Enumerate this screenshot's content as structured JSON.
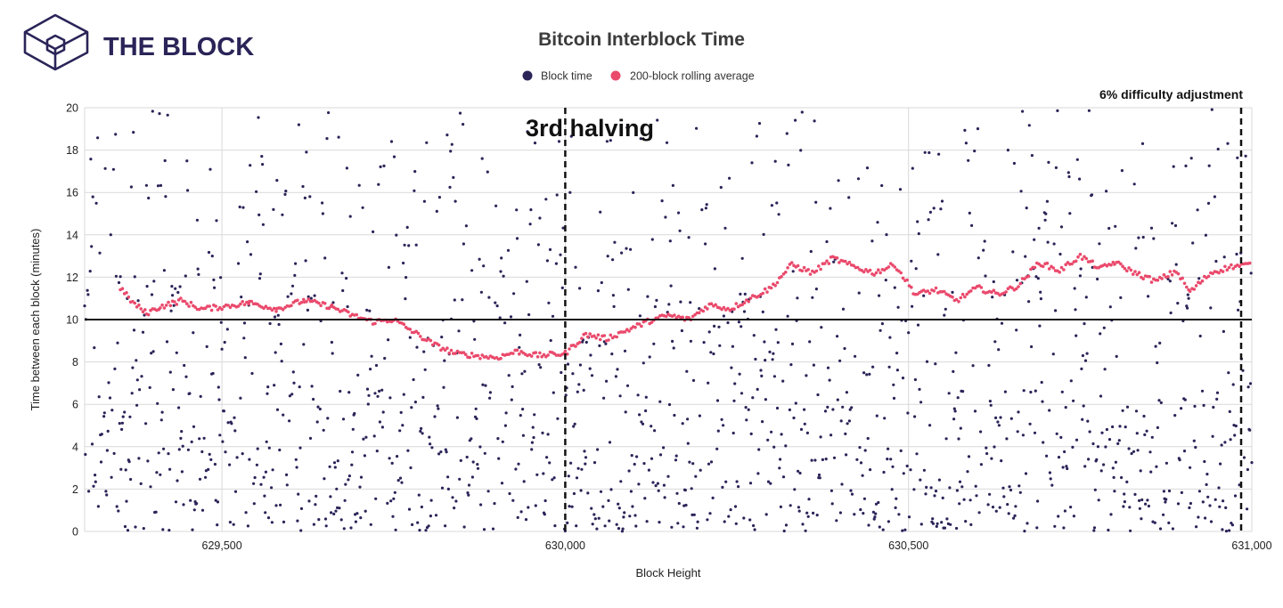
{
  "brand": {
    "name": "THE BLOCK",
    "color": "#2a2458"
  },
  "colors": {
    "block_time": "#2a2458",
    "rolling_avg": "#ea4a6c",
    "reference_line": "#111111"
  },
  "chart_data": {
    "type": "scatter",
    "title": "Bitcoin Interblock Time",
    "xlabel": "Block Height",
    "ylabel": "Time between each block (minutes)",
    "xlim": [
      629300,
      631000
    ],
    "ylim": [
      0,
      20
    ],
    "x_ticks": [
      629500,
      630000,
      630500,
      631000
    ],
    "x_tick_labels": [
      "629,500",
      "630,000",
      "630,500",
      "631,000"
    ],
    "y_ticks": [
      0,
      2,
      4,
      6,
      8,
      10,
      12,
      14,
      16,
      18,
      20
    ],
    "grid": true,
    "legend_position": "top-center",
    "series": [
      {
        "name": "Block time",
        "kind": "points",
        "note_count_estimate": 1700
      },
      {
        "name": "200-block rolling average",
        "kind": "smoothed",
        "x": [
          629352,
          629370,
          629390,
          629410,
          629440,
          629470,
          629500,
          629540,
          629580,
          629620,
          629660,
          629690,
          629720,
          629750,
          629780,
          629810,
          629840,
          629870,
          629900,
          629930,
          629960,
          630000,
          630030,
          630060,
          630090,
          630120,
          630150,
          630180,
          630210,
          630240,
          630270,
          630300,
          630330,
          630360,
          630390,
          630420,
          630450,
          630480,
          630510,
          630540,
          630570,
          630600,
          630630,
          630660,
          630690,
          630720,
          630750,
          630780,
          630800,
          630830,
          630860,
          630890,
          630910,
          630940,
          630970,
          631000
        ],
        "y": [
          11.5,
          10.8,
          10.3,
          10.6,
          10.9,
          10.5,
          10.6,
          10.8,
          10.5,
          10.9,
          10.6,
          10.2,
          9.9,
          10.0,
          9.4,
          8.8,
          8.4,
          8.3,
          8.2,
          8.5,
          8.3,
          8.4,
          9.3,
          9.1,
          9.5,
          9.9,
          10.2,
          10.0,
          10.7,
          10.5,
          11.0,
          11.5,
          12.6,
          12.2,
          12.9,
          12.5,
          12.2,
          12.6,
          11.2,
          11.4,
          10.9,
          11.5,
          11.2,
          11.6,
          12.7,
          12.3,
          13.0,
          12.4,
          12.7,
          12.2,
          11.8,
          12.3,
          11.3,
          12.2,
          12.5,
          12.6
        ]
      }
    ],
    "reference_lines": [
      {
        "axis": "y",
        "value": 10,
        "style": "solid"
      },
      {
        "axis": "x",
        "value": 630000,
        "style": "dashed"
      },
      {
        "axis": "x",
        "value": 631000,
        "style": "dashed"
      }
    ],
    "annotations": [
      {
        "text": "3rd halving",
        "at_x": 630000
      },
      {
        "text": "6% difficulty adjustment",
        "at_x": 631000
      }
    ]
  }
}
